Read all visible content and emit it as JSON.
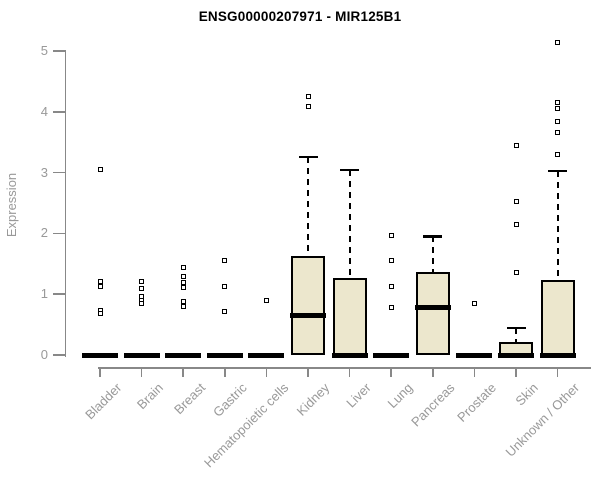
{
  "title": "ENSG00000207971 - MIR125B1",
  "ylabel": "Expression",
  "colors": {
    "box_fill": "#ece7cd",
    "box_stroke": "#000000",
    "axis": "#888888",
    "tick_label": "#999999",
    "title": "#000000"
  },
  "chart_data": {
    "type": "boxplot",
    "title": "ENSG00000207971 - MIR125B1",
    "xlabel": "",
    "ylabel": "Expression",
    "ylim": [
      0,
      5
    ],
    "yticks": [
      0,
      1,
      2,
      3,
      4,
      5
    ],
    "grid": false,
    "legend": "none",
    "categories": [
      "Bladder",
      "Brain",
      "Breast",
      "Gastric",
      "Hematopoietic cells",
      "Kidney",
      "Liver",
      "Lung",
      "Pancreas",
      "Prostate",
      "Skin",
      "Unknown / Other"
    ],
    "boxes": [
      {
        "label": "Bladder",
        "whisker_low": 0,
        "q1": 0,
        "median": 0,
        "q3": 0,
        "whisker_high": 0,
        "outliers": [
          3.05,
          1.21,
          1.12,
          0.73,
          0.68
        ]
      },
      {
        "label": "Brain",
        "whisker_low": 0,
        "q1": 0,
        "median": 0,
        "q3": 0,
        "whisker_high": 0,
        "outliers": [
          1.21,
          1.09,
          0.97,
          0.9,
          0.84
        ]
      },
      {
        "label": "Breast",
        "whisker_low": 0,
        "q1": 0,
        "median": 0,
        "q3": 0,
        "whisker_high": 0,
        "outliers": [
          1.44,
          1.29,
          1.2,
          1.11,
          0.88,
          0.79
        ]
      },
      {
        "label": "Gastric",
        "whisker_low": 0,
        "q1": 0,
        "median": 0,
        "q3": 0,
        "whisker_high": 0,
        "outliers": [
          1.55,
          1.12,
          0.71
        ]
      },
      {
        "label": "Hematopoietic cells",
        "whisker_low": 0,
        "q1": 0,
        "median": 0,
        "q3": 0,
        "whisker_high": 0,
        "outliers": [
          0.9
        ]
      },
      {
        "label": "Kidney",
        "whisker_low": 0,
        "q1": 0,
        "median": 0.65,
        "q3": 1.63,
        "whisker_high": 3.26,
        "outliers": [
          4.25,
          4.08
        ]
      },
      {
        "label": "Liver",
        "whisker_low": 0,
        "q1": 0,
        "median": 0,
        "q3": 1.27,
        "whisker_high": 3.04,
        "outliers": []
      },
      {
        "label": "Lung",
        "whisker_low": 0,
        "q1": 0,
        "median": 0,
        "q3": 0,
        "whisker_high": 0,
        "outliers": [
          1.97,
          1.55,
          1.12,
          0.78
        ]
      },
      {
        "label": "Pancreas",
        "whisker_low": 0,
        "q1": 0,
        "median": 0.78,
        "q3": 1.37,
        "whisker_high": 1.95,
        "outliers": []
      },
      {
        "label": "Prostate",
        "whisker_low": 0,
        "q1": 0,
        "median": 0,
        "q3": 0,
        "whisker_high": 0,
        "outliers": [
          0.85
        ]
      },
      {
        "label": "Skin",
        "whisker_low": 0,
        "q1": 0,
        "median": 0,
        "q3": 0.21,
        "whisker_high": 0.44,
        "outliers": [
          3.45,
          2.53,
          2.15,
          1.35
        ]
      },
      {
        "label": "Unknown / Other",
        "whisker_low": 0,
        "q1": 0,
        "median": 0,
        "q3": 1.23,
        "whisker_high": 3.03,
        "outliers": [
          5.14,
          4.16,
          4.05,
          3.84,
          3.66,
          3.3
        ]
      }
    ]
  }
}
